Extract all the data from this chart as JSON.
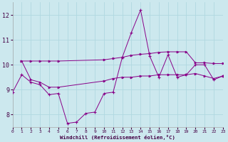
{
  "xlabel": "Windchill (Refroidissement éolien,°C)",
  "background_color": "#cce8ee",
  "grid_color": "#b0d8e0",
  "line_color": "#880088",
  "xmin": 0,
  "xmax": 23,
  "ymin": 7.5,
  "ymax": 12.5,
  "yticks": [
    8,
    9,
    10,
    11,
    12
  ],
  "xticks": [
    0,
    1,
    2,
    3,
    4,
    5,
    6,
    7,
    8,
    9,
    10,
    11,
    12,
    13,
    14,
    15,
    16,
    17,
    18,
    19,
    20,
    21,
    22,
    23
  ],
  "line1_x": [
    0,
    1,
    2,
    3,
    4,
    5,
    6,
    7,
    8,
    9,
    10,
    11,
    12,
    13,
    14,
    15,
    16,
    17,
    18,
    19,
    20,
    21,
    22,
    23
  ],
  "line1_y": [
    8.9,
    9.6,
    9.3,
    9.2,
    8.8,
    8.85,
    7.65,
    7.7,
    8.05,
    8.1,
    8.85,
    8.9,
    10.3,
    11.3,
    12.2,
    10.35,
    9.5,
    10.4,
    9.5,
    9.6,
    10.0,
    10.0,
    9.4,
    9.55
  ],
  "line2_x": [
    1,
    2,
    3,
    4,
    5,
    10,
    11,
    12,
    13,
    14,
    15,
    16,
    17,
    18,
    19,
    20,
    21,
    22,
    23
  ],
  "line2_y": [
    10.15,
    10.15,
    10.15,
    10.15,
    10.15,
    10.2,
    10.25,
    10.3,
    10.38,
    10.42,
    10.45,
    10.5,
    10.52,
    10.52,
    10.52,
    10.08,
    10.08,
    10.05,
    10.05
  ],
  "line3_x": [
    1,
    2,
    3,
    4,
    5,
    10,
    11,
    12,
    13,
    14,
    15,
    16,
    17,
    18,
    19,
    20,
    21,
    22,
    23
  ],
  "line3_y": [
    10.15,
    9.4,
    9.3,
    9.1,
    9.1,
    9.35,
    9.45,
    9.5,
    9.5,
    9.55,
    9.55,
    9.6,
    9.6,
    9.6,
    9.6,
    9.65,
    9.55,
    9.45,
    9.55
  ]
}
